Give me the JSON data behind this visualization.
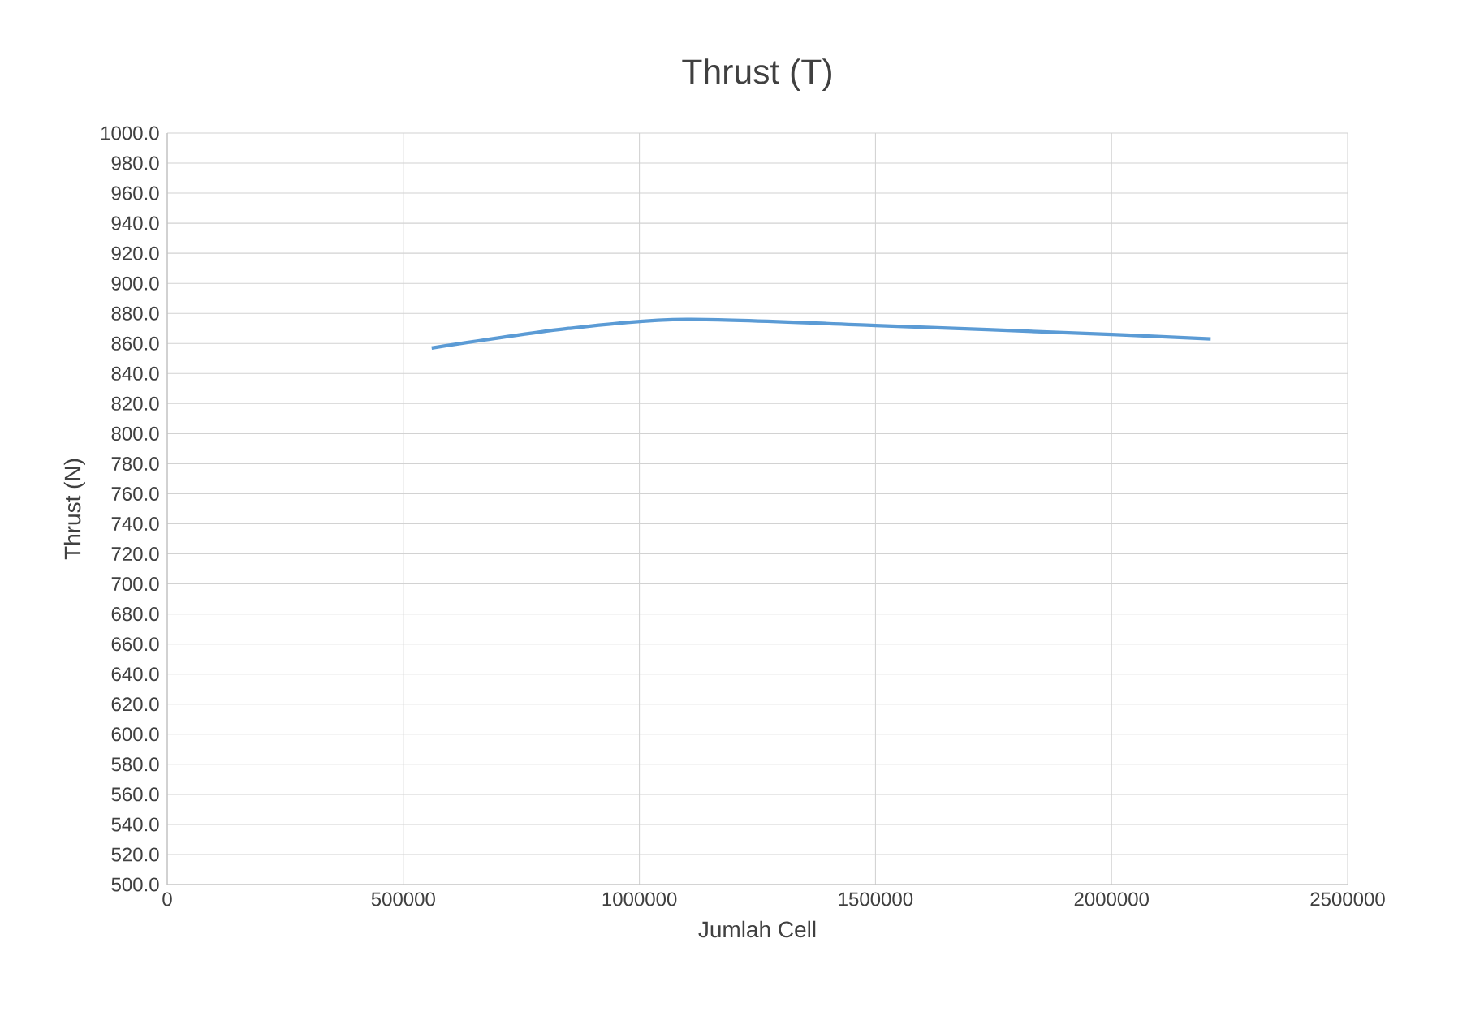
{
  "chart_data": {
    "type": "line",
    "title": "Thrust (T)",
    "xlabel": "Jumlah Cell",
    "ylabel": "Thrust (N)",
    "x": [
      560000,
      850000,
      1100000,
      1500000,
      2000000,
      2210000
    ],
    "series": [
      {
        "color": "#5b9bd5",
        "values": [
          857,
          870,
          876,
          872,
          866,
          863
        ]
      }
    ],
    "xlim": [
      0,
      2500000
    ],
    "xticks": [
      0,
      500000,
      1000000,
      1500000,
      2000000,
      2500000
    ],
    "ylim": [
      500,
      1000
    ],
    "yticks": [
      {
        "value": 500,
        "label": "500.0"
      },
      {
        "value": 520,
        "label": "520.0"
      },
      {
        "value": 540,
        "label": "540.0"
      },
      {
        "value": 560,
        "label": "560.0"
      },
      {
        "value": 580,
        "label": "580.0"
      },
      {
        "value": 600,
        "label": "600.0"
      },
      {
        "value": 620,
        "label": "620.0"
      },
      {
        "value": 640,
        "label": "640.0"
      },
      {
        "value": 660,
        "label": "660.0"
      },
      {
        "value": 680,
        "label": "680.0"
      },
      {
        "value": 700,
        "label": "700.0"
      },
      {
        "value": 720,
        "label": "720.0"
      },
      {
        "value": 740,
        "label": "740.0"
      },
      {
        "value": 760,
        "label": "760.0"
      },
      {
        "value": 780,
        "label": "780.0"
      },
      {
        "value": 800,
        "label": "800.0"
      },
      {
        "value": 820,
        "label": "820.0"
      },
      {
        "value": 840,
        "label": "840.0"
      },
      {
        "value": 860,
        "label": "860.0"
      },
      {
        "value": 880,
        "label": "880.0"
      },
      {
        "value": 900,
        "label": "900.0"
      },
      {
        "value": 920,
        "label": "920.0"
      },
      {
        "value": 940,
        "label": "940.0"
      },
      {
        "value": 960,
        "label": "960.0"
      },
      {
        "value": 980,
        "label": "980.0"
      },
      {
        "value": 1000,
        "label": "1000.0"
      }
    ],
    "grid": true,
    "marker": "none",
    "line_style": "solid"
  }
}
